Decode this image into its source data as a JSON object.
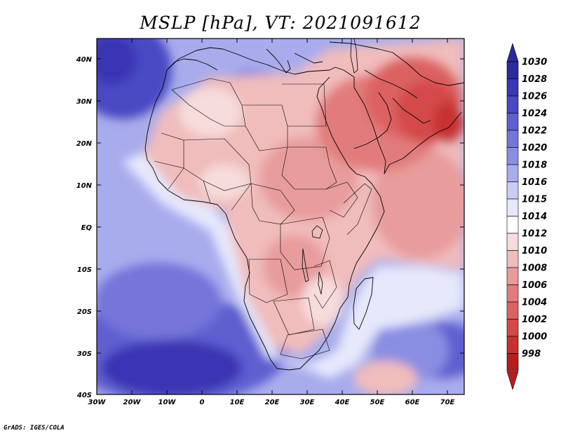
{
  "title": "MSLP [hPa], VT: 2021091612",
  "credit": "GrADS: IGES/COLA",
  "lat_labels": [
    "40N",
    "30N",
    "20N",
    "10N",
    "EQ",
    "10S",
    "20S",
    "30S",
    "40S"
  ],
  "lon_labels": [
    "30W",
    "20W",
    "10W",
    "0",
    "10E",
    "20E",
    "30E",
    "40E",
    "50E",
    "60E",
    "70E"
  ],
  "colorbar": {
    "labels": [
      "1030",
      "1028",
      "1026",
      "1024",
      "1022",
      "1020",
      "1018",
      "1016",
      "1015",
      "1014",
      "1012",
      "1010",
      "1008",
      "1006",
      "1004",
      "1002",
      "1000",
      "998"
    ],
    "colors": [
      "#2c2a9c",
      "#3a36b4",
      "#4a48c4",
      "#5e5ed0",
      "#7474da",
      "#8a8ee2",
      "#a8acec",
      "#c8ccf6",
      "#e6e8fc",
      "#ffffff",
      "#f6dcdc",
      "#f0bcbc",
      "#e89c9c",
      "#e27c7c",
      "#dc6262",
      "#d44848",
      "#c83030",
      "#b81c1c"
    ]
  }
}
